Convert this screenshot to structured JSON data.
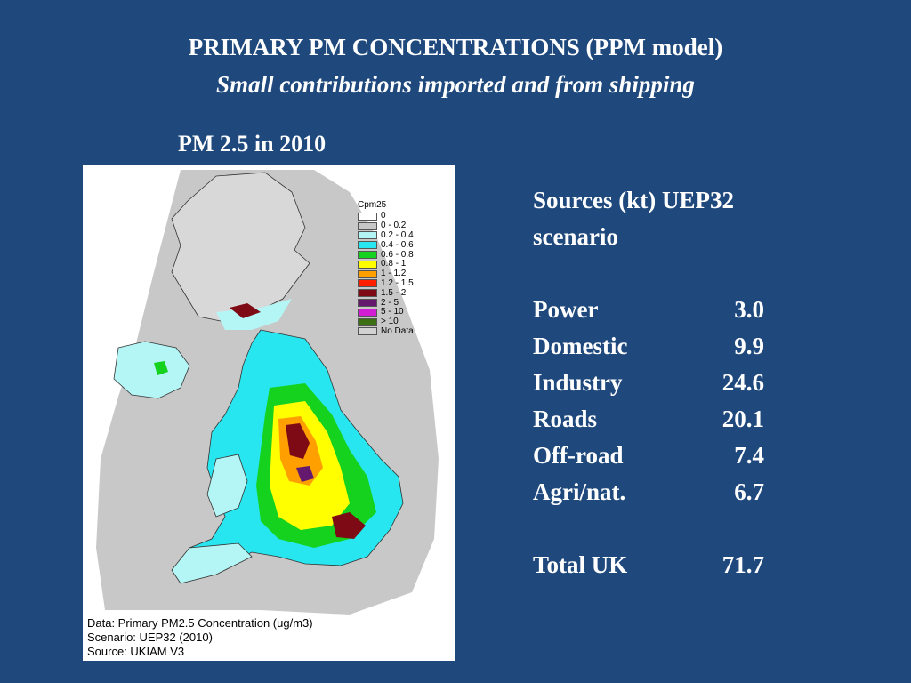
{
  "title": "PRIMARY PM CONCENTRATIONS (PPM model)",
  "subtitle": "Small contributions imported and from shipping",
  "map_heading": "PM 2.5 in 2010",
  "map": {
    "legend_title": "Cpm25",
    "legend": [
      {
        "label": "0",
        "color": "#ffffff"
      },
      {
        "label": "0 - 0.2",
        "color": "#c8c8c8"
      },
      {
        "label": "0.2 - 0.4",
        "color": "#b4f5f5"
      },
      {
        "label": "0.4 - 0.6",
        "color": "#28e6f0"
      },
      {
        "label": "0.6 - 0.8",
        "color": "#14d21e"
      },
      {
        "label": "0.8 - 1",
        "color": "#ffff00"
      },
      {
        "label": "1 - 1.2",
        "color": "#ffa000"
      },
      {
        "label": "1.2 - 1.5",
        "color": "#ff1e00"
      },
      {
        "label": "1.5 - 2",
        "color": "#7d0a14"
      },
      {
        "label": "2 - 5",
        "color": "#64196e"
      },
      {
        "label": "5 - 10",
        "color": "#d21ed2"
      },
      {
        "label": "> 10",
        "color": "#3c6e14"
      },
      {
        "label": "No Data",
        "color": "#d2d2d2"
      }
    ],
    "caption_lines": [
      "Data: Primary PM2.5 Concentration (ug/m3)",
      "Scenario: UEP32 (2010)",
      "Source: UKIAM V3"
    ]
  },
  "sources": {
    "heading": "Sources (kt) UEP32 scenario",
    "rows": [
      {
        "name": "Power",
        "value": "3.0"
      },
      {
        "name": "Domestic",
        "value": "9.9"
      },
      {
        "name": "Industry",
        "value": "24.6"
      },
      {
        "name": "Roads",
        "value": "20.1"
      },
      {
        "name": "Off-road",
        "value": "7.4"
      },
      {
        "name": "Agri/nat.",
        "value": "6.7"
      }
    ],
    "total_name": "Total UK",
    "total_value": "71.7"
  }
}
